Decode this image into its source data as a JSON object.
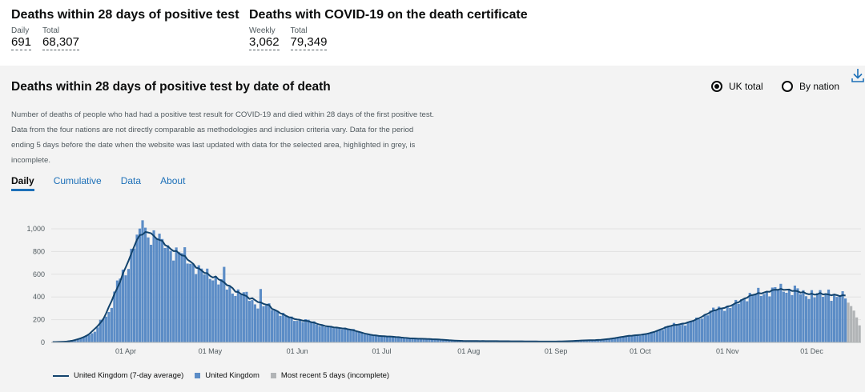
{
  "kpis": [
    {
      "title": "Deaths within 28 days of positive test",
      "items": [
        {
          "label": "Daily",
          "value": "691"
        },
        {
          "label": "Total",
          "value": "68,307"
        }
      ]
    },
    {
      "title": "Deaths with COVID-19 on the death certificate",
      "items": [
        {
          "label": "Weekly",
          "value": "3,062"
        },
        {
          "label": "Total",
          "value": "79,349"
        }
      ]
    }
  ],
  "card": {
    "title": "Deaths within 28 days of positive test by date of death",
    "radio": [
      {
        "label": "UK total",
        "checked": true
      },
      {
        "label": "By nation",
        "checked": false
      }
    ],
    "description": "Number of deaths of people who had had a positive test result for COVID-19 and died within 28 days of the first positive test. Data from the four nations are not directly comparable as methodologies and inclusion criteria vary. Data for the period ending 5 days before the date when the website was last updated with data for the selected area, highlighted in grey, is incomplete.",
    "tabs": [
      {
        "label": "Daily",
        "active": true
      },
      {
        "label": "Cumulative",
        "active": false
      },
      {
        "label": "Data",
        "active": false
      },
      {
        "label": "About",
        "active": false
      }
    ]
  },
  "colors": {
    "bar": "#5b8cc6",
    "line": "#12436d",
    "incomplete": "#b1b4b6"
  },
  "chart_data": {
    "type": "bar",
    "x_range": [
      "2020-03-06",
      "2020-12-18"
    ],
    "ylim": [
      0,
      1000
    ],
    "y_ticks": [
      0,
      200,
      400,
      600,
      800,
      1000
    ],
    "y_tick_labels": [
      "0",
      "200",
      "400",
      "600",
      "800",
      "1,000"
    ],
    "x_ticks": [
      {
        "date": "2020-04-01",
        "label": "01 Apr"
      },
      {
        "date": "2020-05-01",
        "label": "01 May"
      },
      {
        "date": "2020-06-01",
        "label": "01 Jun"
      },
      {
        "date": "2020-07-01",
        "label": "01 Jul"
      },
      {
        "date": "2020-08-01",
        "label": "01 Aug"
      },
      {
        "date": "2020-09-01",
        "label": "01 Sep"
      },
      {
        "date": "2020-10-01",
        "label": "01 Oct"
      },
      {
        "date": "2020-11-01",
        "label": "01 Nov"
      },
      {
        "date": "2020-12-01",
        "label": "01 Dec"
      }
    ],
    "series": [
      {
        "name": "United Kingdom (7-day average)",
        "kind": "line"
      },
      {
        "name": "United Kingdom",
        "kind": "bar"
      },
      {
        "name": "Most recent 5 days (incomplete)",
        "kind": "bar"
      }
    ],
    "incomplete_days": 5,
    "daily_keypoints": [
      {
        "date": "2020-03-06",
        "value": 2
      },
      {
        "date": "2020-03-13",
        "value": 10
      },
      {
        "date": "2020-03-20",
        "value": 75
      },
      {
        "date": "2020-03-25",
        "value": 240
      },
      {
        "date": "2020-03-31",
        "value": 600
      },
      {
        "date": "2020-04-05",
        "value": 900
      },
      {
        "date": "2020-04-08",
        "value": 975
      },
      {
        "date": "2020-04-12",
        "value": 930
      },
      {
        "date": "2020-04-20",
        "value": 780
      },
      {
        "date": "2020-04-30",
        "value": 600
      },
      {
        "date": "2020-05-10",
        "value": 450
      },
      {
        "date": "2020-05-20",
        "value": 320
      },
      {
        "date": "2020-06-01",
        "value": 200
      },
      {
        "date": "2020-06-15",
        "value": 130
      },
      {
        "date": "2020-07-01",
        "value": 55
      },
      {
        "date": "2020-07-15",
        "value": 32
      },
      {
        "date": "2020-08-01",
        "value": 12
      },
      {
        "date": "2020-09-01",
        "value": 8
      },
      {
        "date": "2020-09-15",
        "value": 20
      },
      {
        "date": "2020-10-01",
        "value": 65
      },
      {
        "date": "2020-10-15",
        "value": 160
      },
      {
        "date": "2020-11-01",
        "value": 310
      },
      {
        "date": "2020-11-10",
        "value": 420
      },
      {
        "date": "2020-11-20",
        "value": 470
      },
      {
        "date": "2020-12-01",
        "value": 420
      },
      {
        "date": "2020-12-13",
        "value": 405
      },
      {
        "date": "2020-12-18",
        "value": 390
      }
    ],
    "spikes": [
      {
        "date": "2020-04-07",
        "value": 1075
      },
      {
        "date": "2020-04-08",
        "value": 1010
      },
      {
        "date": "2020-04-14",
        "value": 910
      },
      {
        "date": "2020-05-06",
        "value": 665
      },
      {
        "date": "2020-05-19",
        "value": 470
      },
      {
        "date": "2020-11-12",
        "value": 480
      },
      {
        "date": "2020-11-25",
        "value": 500
      },
      {
        "date": "2020-12-01",
        "value": 460
      },
      {
        "date": "2020-12-07",
        "value": 465
      }
    ],
    "incomplete_values": [
      350,
      320,
      280,
      220,
      150
    ],
    "legend_labels": [
      "United Kingdom (7-day average)",
      "United Kingdom",
      "Most recent 5 days (incomplete)"
    ]
  }
}
